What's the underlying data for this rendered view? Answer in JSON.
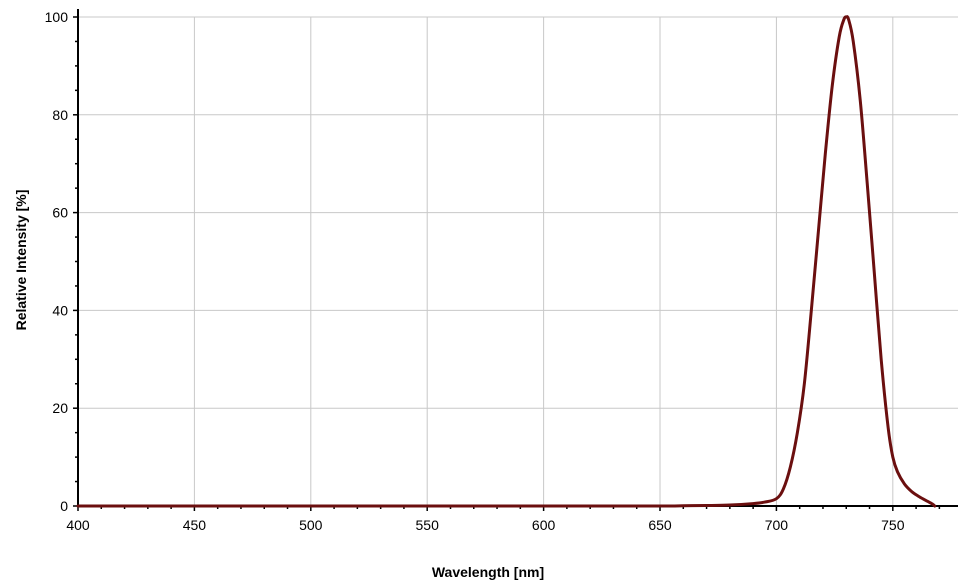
{
  "chart_data": {
    "type": "line",
    "title": "",
    "xlabel": "Wavelength [nm]",
    "ylabel": "Relative Intensity [%]",
    "xlim": [
      400,
      778
    ],
    "ylim": [
      0,
      100
    ],
    "xticks": [
      400,
      450,
      500,
      550,
      600,
      650,
      700,
      750
    ],
    "yticks": [
      0,
      20,
      40,
      60,
      80,
      100
    ],
    "grid": true,
    "legend": "none",
    "series": [
      {
        "color": "#6b0f0f",
        "x": [
          400,
          600,
          650,
          660,
          670,
          680,
          690,
          695,
          700,
          703,
          706,
          709,
          712,
          715,
          718,
          721,
          724,
          727,
          729,
          730,
          731,
          733,
          736,
          739,
          742,
          745,
          748,
          750,
          752,
          755,
          758,
          761,
          764,
          767,
          768
        ],
        "y": [
          0,
          0,
          0,
          0.05,
          0.1,
          0.2,
          0.5,
          0.8,
          1.5,
          3.5,
          8,
          15,
          25,
          40,
          56,
          72,
          86,
          96,
          99.5,
          100,
          99.5,
          95,
          83,
          66,
          48,
          30,
          16,
          10,
          7,
          4.5,
          3,
          2,
          1.2,
          0.4,
          0
        ]
      }
    ]
  }
}
